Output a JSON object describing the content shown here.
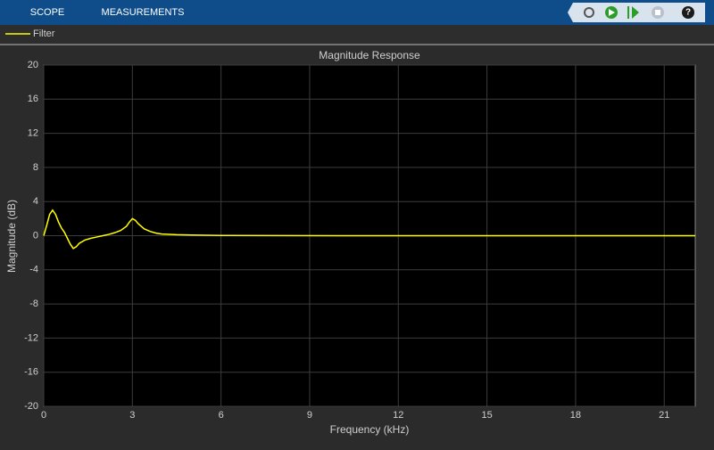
{
  "toolbar": {
    "tabs": [
      "SCOPE",
      "MEASUREMENTS"
    ],
    "help": "?"
  },
  "chart_data": {
    "type": "line",
    "title": "Magnitude Response",
    "x_label": "Frequency (kHz)",
    "y_label": "Magnitude (dB)",
    "x": [
      0,
      0.1,
      0.2,
      0.3,
      0.4,
      0.5,
      0.6,
      0.7,
      0.8,
      0.9,
      1.0,
      1.1,
      1.2,
      1.4,
      1.6,
      1.8,
      2.0,
      2.2,
      2.4,
      2.6,
      2.8,
      2.9,
      3.0,
      3.1,
      3.2,
      3.4,
      3.6,
      3.8,
      4.0,
      4.5,
      5.0,
      6.0,
      8.0,
      10,
      14,
      18,
      22.05
    ],
    "series": [
      {
        "name": "Filter",
        "color": "#ffff00",
        "values": [
          0,
          1.2,
          2.5,
          3.0,
          2.5,
          1.6,
          0.9,
          0.4,
          -0.3,
          -1.0,
          -1.5,
          -1.3,
          -0.9,
          -0.5,
          -0.3,
          -0.15,
          0,
          0.15,
          0.35,
          0.6,
          1.1,
          1.6,
          2.0,
          1.8,
          1.4,
          0.8,
          0.5,
          0.3,
          0.2,
          0.12,
          0.08,
          0.03,
          0.01,
          0,
          0,
          0,
          0
        ]
      }
    ],
    "xlim": [
      0,
      22.05
    ],
    "ylim": [
      -20,
      20
    ],
    "xticks": [
      0,
      3,
      6,
      9,
      12,
      15,
      18,
      21
    ],
    "yticks": [
      -20,
      -16,
      -12,
      -8,
      -4,
      0,
      4,
      8,
      12,
      16,
      20
    ],
    "grid": true
  }
}
